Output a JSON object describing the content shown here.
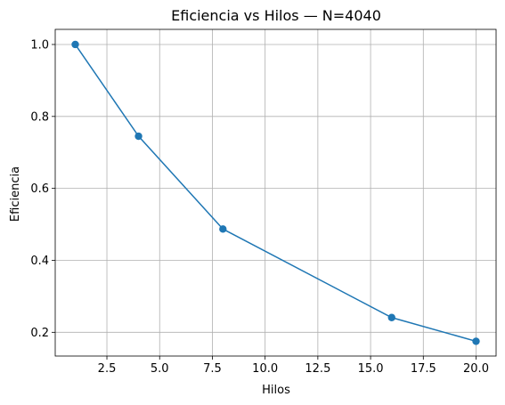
{
  "chart_data": {
    "type": "line",
    "title": "Eficiencia vs Hilos — N=4040",
    "xlabel": "Hilos",
    "ylabel": "Eficiencia",
    "xlim": [
      0.05,
      20.95
    ],
    "ylim": [
      0.134,
      1.042
    ],
    "xticks": [
      2.5,
      5.0,
      7.5,
      10.0,
      12.5,
      15.0,
      17.5,
      20.0
    ],
    "xtick_labels": [
      "2.5",
      "5.0",
      "7.5",
      "10.0",
      "12.5",
      "15.0",
      "17.5",
      "20.0"
    ],
    "yticks": [
      0.2,
      0.4,
      0.6,
      0.8,
      1.0
    ],
    "ytick_labels": [
      "0.2",
      "0.4",
      "0.6",
      "0.8",
      "1.0"
    ],
    "grid": true,
    "series": [
      {
        "x": [
          1,
          4,
          8,
          16,
          20
        ],
        "y": [
          1.0,
          0.745,
          0.487,
          0.241,
          0.175
        ],
        "color": "#1f77b4",
        "marker": "circle"
      }
    ]
  }
}
